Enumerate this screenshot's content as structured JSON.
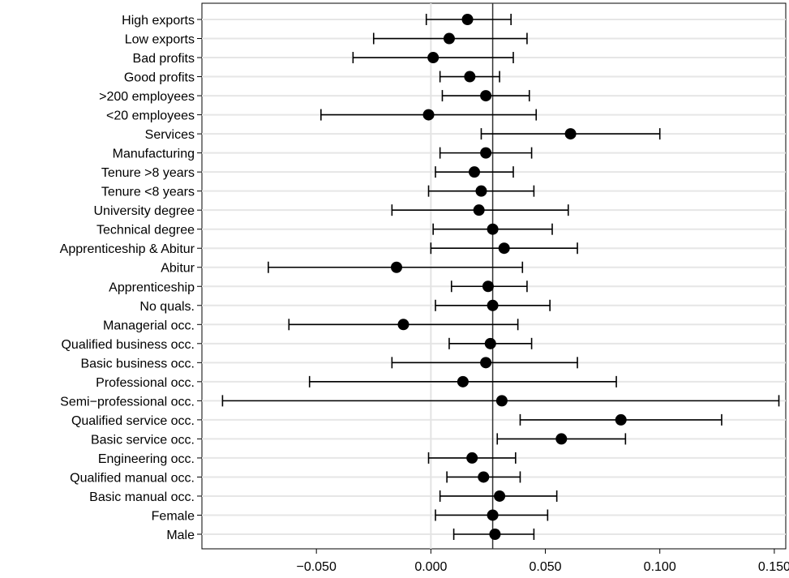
{
  "chart_data": {
    "type": "scatter",
    "orientation": "horizontal",
    "markers": "points-with-error-bars",
    "categories": [
      "High exports",
      "Low exports",
      "Bad profits",
      "Good profits",
      ">200 employees",
      "<20 employees",
      "Services",
      "Manufacturing",
      "Tenure >8 years",
      "Tenure <8 years",
      "University degree",
      "Technical degree",
      "Apprenticeship & Abitur",
      "Abitur",
      "Apprenticeship",
      "No quals.",
      "Managerial occ.",
      "Qualified business occ.",
      "Basic business occ.",
      "Professional occ.",
      "Semi−professional occ.",
      "Qualified service occ.",
      "Basic service occ.",
      "Engineering occ.",
      "Qualified manual occ.",
      "Basic manual occ.",
      "Female",
      "Male"
    ],
    "estimates": [
      0.016,
      0.008,
      0.001,
      0.017,
      0.024,
      -0.001,
      0.061,
      0.024,
      0.019,
      0.022,
      0.021,
      0.027,
      0.032,
      -0.015,
      0.025,
      0.027,
      -0.012,
      0.026,
      0.024,
      0.014,
      0.031,
      0.083,
      0.057,
      0.018,
      0.023,
      0.03,
      0.027,
      0.028
    ],
    "lower": [
      -0.002,
      -0.025,
      -0.034,
      0.004,
      0.005,
      -0.048,
      0.022,
      0.004,
      0.002,
      -0.001,
      -0.017,
      0.001,
      0.0,
      -0.071,
      0.009,
      0.002,
      -0.062,
      0.008,
      -0.017,
      -0.053,
      -0.091,
      0.039,
      0.029,
      -0.001,
      0.007,
      0.004,
      0.002,
      0.01
    ],
    "upper": [
      0.035,
      0.042,
      0.036,
      0.03,
      0.043,
      0.046,
      0.1,
      0.044,
      0.036,
      0.045,
      0.06,
      0.053,
      0.064,
      0.04,
      0.042,
      0.052,
      0.038,
      0.044,
      0.064,
      0.081,
      0.152,
      0.127,
      0.085,
      0.037,
      0.039,
      0.055,
      0.051,
      0.045
    ],
    "x_ticks": [
      -0.05,
      0.0,
      0.05,
      0.1,
      0.15
    ],
    "x_tick_labels": [
      "−0.050",
      "0.000",
      "0.050",
      "0.100",
      "0.150"
    ],
    "xlim": [
      -0.1,
      0.155
    ],
    "reference_lines": [
      0.0,
      0.027
    ],
    "grid": true,
    "title": "",
    "xlabel": "",
    "ylabel": ""
  }
}
